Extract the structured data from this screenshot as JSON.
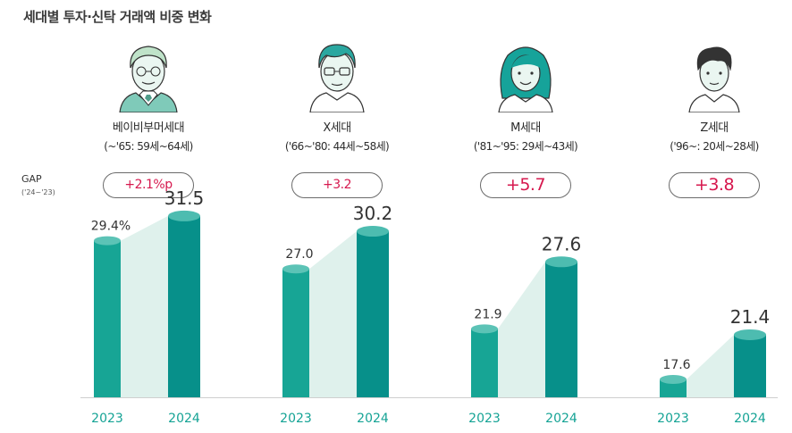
{
  "title": "세대별 투자·신탁 거래액 비중 변화",
  "gap_label": "GAP",
  "gap_sub": "('24~'23)",
  "colors": {
    "bar_2023": "#17a595",
    "bar_2023_top": "#5cc3b6",
    "bar_2024": "#07908a",
    "bar_2024_top": "#4dbcb0",
    "gap_text": "#d6184e",
    "year_text": "#15a395",
    "connector": "#dff1ec"
  },
  "generations": [
    {
      "name": "베이비부머세대",
      "range": "(~'65: 59세~64세)",
      "gap": "+2.1%p",
      "icon": "senior-man-icon"
    },
    {
      "name": "X세대",
      "range": "('66~'80: 44세~58세)",
      "gap": "+3.2",
      "icon": "middle-aged-man-icon"
    },
    {
      "name": "M세대",
      "range": "('81~'95: 29세~43세)",
      "gap": "+5.7",
      "icon": "young-woman-icon"
    },
    {
      "name": "Z세대",
      "range": "('96~: 20세~28세)",
      "gap": "+3.8",
      "icon": "young-man-icon"
    }
  ],
  "chart_data": {
    "type": "bar",
    "title": "세대별 투자·신탁 거래액 비중 변화",
    "categories": [
      "베이비부머세대",
      "X세대",
      "M세대",
      "Z세대"
    ],
    "x": [
      "2023",
      "2024"
    ],
    "series": [
      {
        "name": "2023",
        "values": [
          29.4,
          27.0,
          21.9,
          17.6
        ],
        "labels": [
          "29.4%",
          "27.0",
          "21.9",
          "17.6"
        ]
      },
      {
        "name": "2024",
        "values": [
          31.5,
          30.2,
          27.6,
          21.4
        ],
        "labels": [
          "31.5",
          "30.2",
          "27.6",
          "21.4"
        ]
      }
    ],
    "ylim": [
      0,
      35
    ],
    "grid": false
  }
}
